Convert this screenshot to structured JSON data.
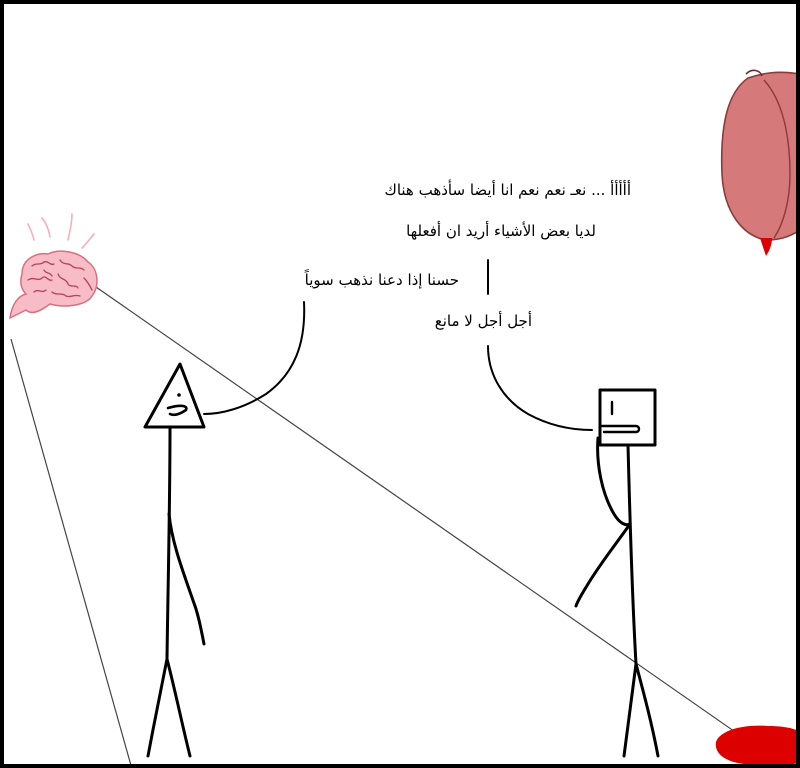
{
  "dialogue": {
    "square_speaker_line_1": "أأأأأ ... نعـ نعم نعم انا أيضا سأذهب هناك",
    "square_speaker_line_2": "لديا  بعض الأشياء أريد ان أفعلها",
    "triangle_speaker_line": "حسنا إذا دعنا نذهب سوياً",
    "square_speaker_reply": "أجل أجل لا مانع"
  },
  "colors": {
    "brain_fill": "#f7bcc6",
    "brain_outline": "#d9707f",
    "brain_rays": "#f4b0bb",
    "heart_fill": "#d5797a",
    "heart_stroke": "#8c3a3a",
    "blood": "#dd0000",
    "ink": "#000000",
    "panel_border": "#000000"
  },
  "icons": [
    "brain-icon",
    "heart-icon",
    "blood-puddle-icon",
    "triangle-head-figure",
    "square-head-figure"
  ]
}
